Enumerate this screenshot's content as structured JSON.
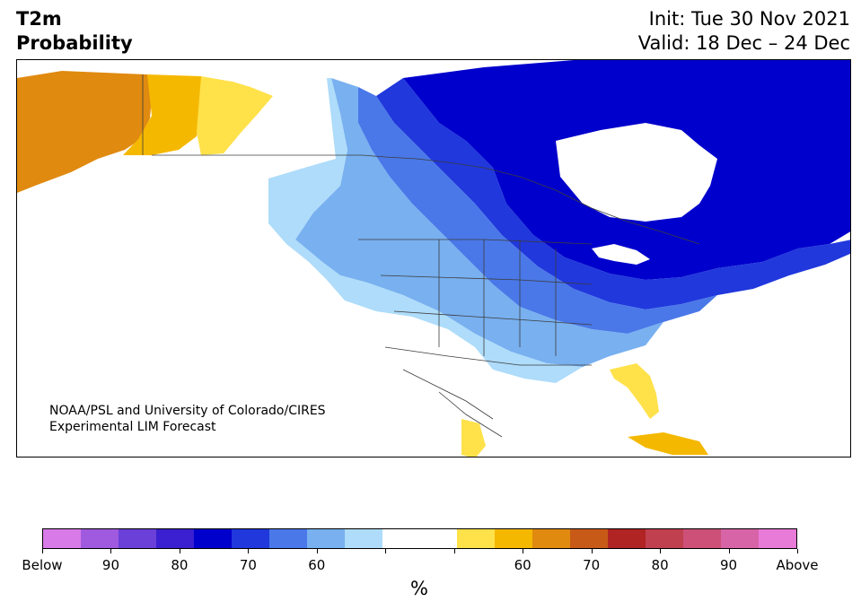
{
  "title": {
    "line1": "T2m",
    "line2": "Probability"
  },
  "forecast": {
    "init": "Init: Tue 30 Nov 2021",
    "valid": "Valid: 18 Dec – 24 Dec"
  },
  "credit": {
    "line1": "NOAA/PSL and University of Colorado/CIRES",
    "line2": "Experimental LIM Forecast"
  },
  "colorbar": {
    "unit": "%",
    "colors": [
      "#d87ae8",
      "#a05ae0",
      "#6a40d8",
      "#3a20d0",
      "#0000cc",
      "#2038dc",
      "#4a78e8",
      "#78b0f0",
      "#aedcfa",
      "#ffffff",
      "#ffffff",
      "#ffe14a",
      "#f5b800",
      "#e08a10",
      "#c85a18",
      "#b02424",
      "#c04050",
      "#cc5078",
      "#d864a8",
      "#e87ad8"
    ],
    "tick_labels": [
      "Below",
      "90",
      "80",
      "70",
      "60",
      "",
      "",
      "60",
      "70",
      "80",
      "90",
      "Above"
    ]
  },
  "map": {
    "colors": {
      "land": "#ffffff",
      "water": "#ffffff",
      "below_light": "#aedcfa",
      "below_mid": "#78b0f0",
      "below_med": "#4a78e8",
      "below_strong": "#2038dc",
      "below_deep": "#0000cc",
      "below_extreme": "#3a20d0",
      "above_light": "#ffe14a",
      "above_mid": "#f5b800",
      "above_strong": "#e08a10",
      "border": "#3c3c3c"
    }
  }
}
